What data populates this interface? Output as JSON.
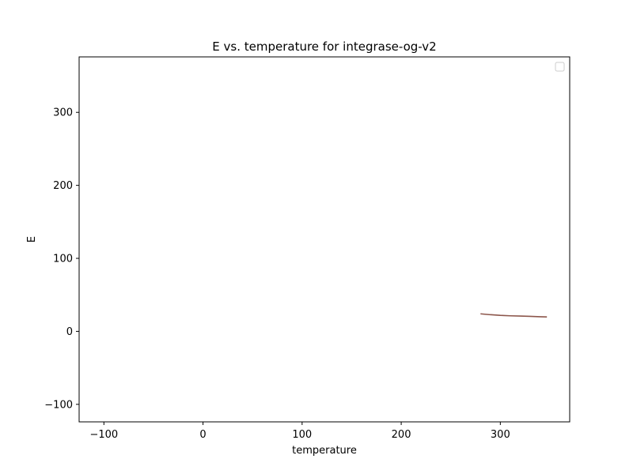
{
  "chart_data": {
    "type": "line",
    "title": "E vs. temperature for integrase-og-v2",
    "xlabel": "temperature",
    "ylabel": "E",
    "xlim": [
      -125,
      370
    ],
    "ylim": [
      -124,
      376
    ],
    "xticks": [
      -100,
      0,
      100,
      200,
      300
    ],
    "yticks": [
      -100,
      0,
      100,
      200,
      300
    ],
    "legend": {
      "location": "top-right",
      "entries": []
    },
    "grid": false,
    "series": [
      {
        "name": "",
        "color": "#8c564b",
        "x": [
          280,
          290,
          300,
          310,
          320,
          330,
          340,
          347
        ],
        "y": [
          24.0,
          22.8,
          21.9,
          21.3,
          20.9,
          20.5,
          20.0,
          19.7
        ]
      }
    ]
  }
}
